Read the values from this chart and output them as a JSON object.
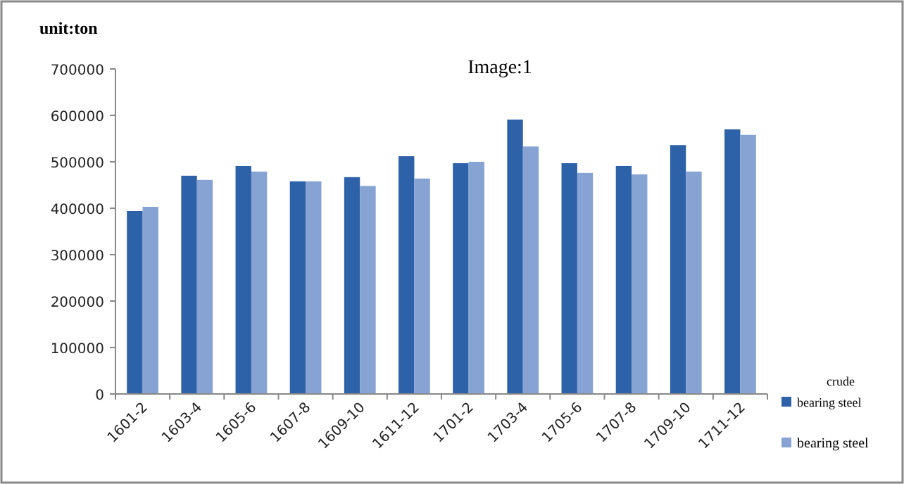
{
  "chart_data": {
    "type": "bar",
    "title": "Image:1",
    "ylabel": "unit:ton",
    "legend_title": "crude",
    "categories": [
      "1601-2",
      "1603-4",
      "1605-6",
      "1607-8",
      "1609-10",
      "1611-12",
      "1701-2",
      "1703-4",
      "1705-6",
      "1707-8",
      "1709-10",
      "1711-12"
    ],
    "series": [
      {
        "name": "bearing steel",
        "color": "#2e62a8",
        "values": [
          394000,
          470000,
          491000,
          458000,
          467000,
          512000,
          497000,
          591000,
          497000,
          491000,
          536000,
          570000
        ]
      },
      {
        "name": "bearing steel",
        "color": "#86a3d3",
        "values": [
          403000,
          461000,
          479000,
          458000,
          448000,
          464000,
          500000,
          533000,
          476000,
          473000,
          479000,
          558000
        ]
      }
    ],
    "ylim": [
      0,
      700000
    ],
    "yticks": [
      0,
      100000,
      200000,
      300000,
      400000,
      500000,
      600000,
      700000
    ],
    "grid": false,
    "legend": "bottom right"
  }
}
